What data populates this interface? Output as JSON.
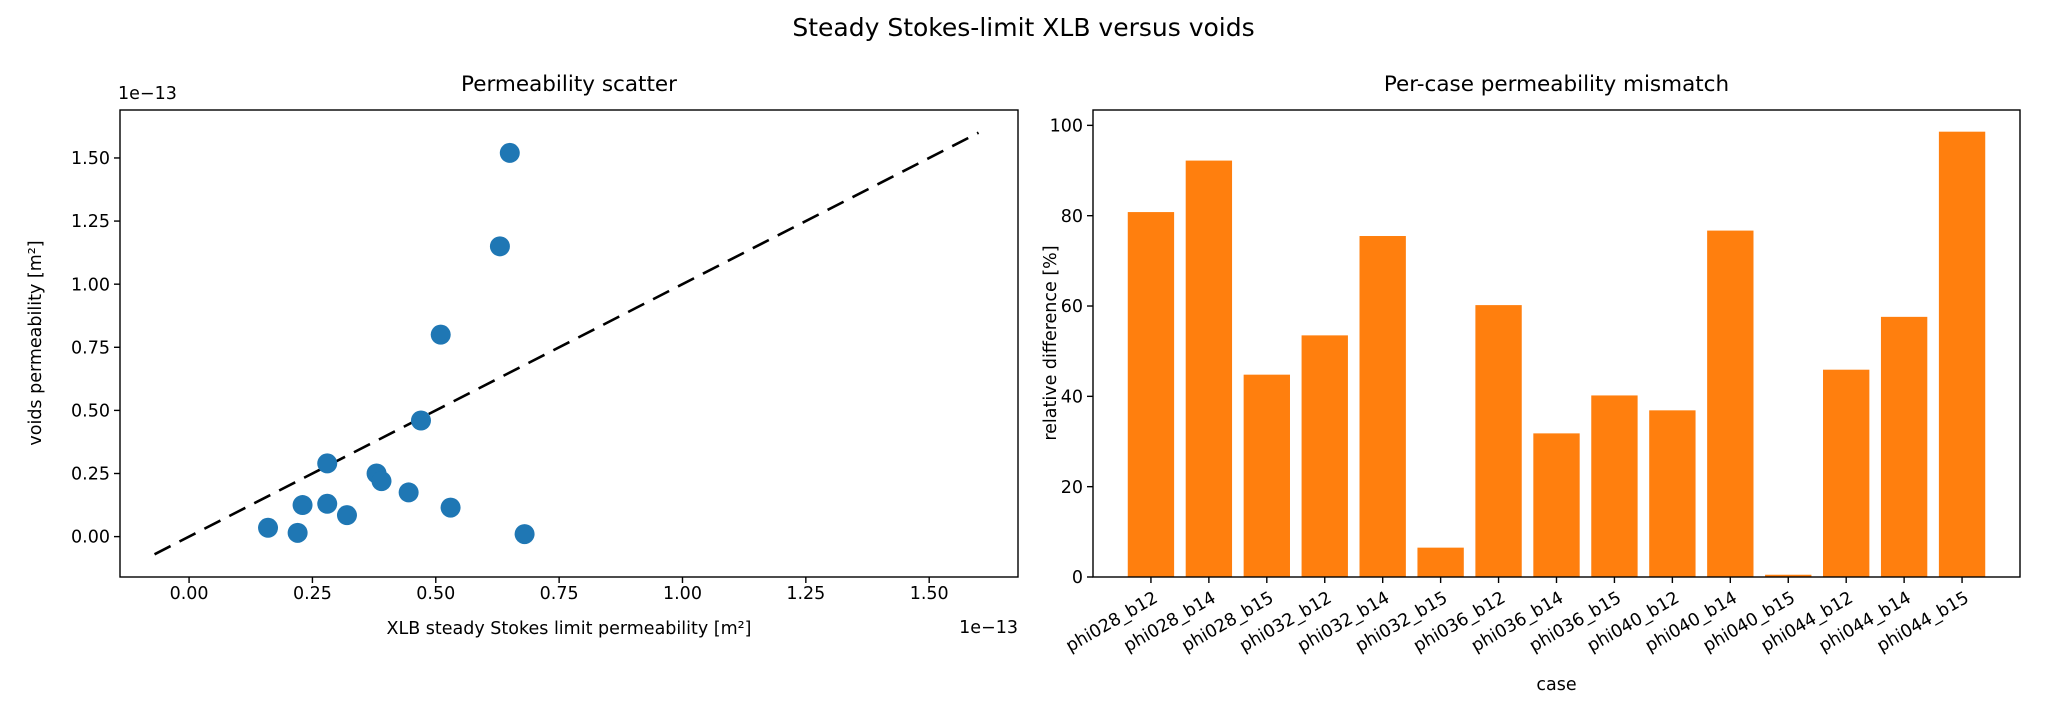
{
  "figure": {
    "suptitle": "Steady Stokes-limit XLB versus voids",
    "background": "#ffffff",
    "text_color": "#000000"
  },
  "chart_data": [
    {
      "type": "scatter",
      "title": "Permeability scatter",
      "xlabel": "XLB steady Stokes limit permeability [m²]",
      "ylabel": "voids permeability [m²]",
      "x_offset_label": "1e−13",
      "y_offset_label": "1e−13",
      "units_scale": "1e-13",
      "marker_color": "#1f77b4",
      "xlim": [
        -0.14,
        1.68
      ],
      "ylim": [
        -0.16,
        1.69
      ],
      "grid": false,
      "x_ticks": {
        "values": [
          0,
          0.25,
          0.5,
          0.75,
          1.0,
          1.25,
          1.5
        ],
        "labels": [
          "0.00",
          "0.25",
          "0.50",
          "0.75",
          "1.00",
          "1.25",
          "1.50"
        ]
      },
      "y_ticks": {
        "values": [
          0,
          0.25,
          0.5,
          0.75,
          1.0,
          1.25,
          1.5
        ],
        "labels": [
          "0.00",
          "0.25",
          "0.50",
          "0.75",
          "1.00",
          "1.25",
          "1.50"
        ]
      },
      "points": [
        [
          0.65,
          1.52
        ],
        [
          0.63,
          1.15
        ],
        [
          0.51,
          0.8
        ],
        [
          0.47,
          0.46
        ],
        [
          0.28,
          0.29
        ],
        [
          0.38,
          0.25
        ],
        [
          0.39,
          0.22
        ],
        [
          0.445,
          0.175
        ],
        [
          0.53,
          0.115
        ],
        [
          0.23,
          0.125
        ],
        [
          0.28,
          0.13
        ],
        [
          0.32,
          0.085
        ],
        [
          0.16,
          0.035
        ],
        [
          0.22,
          0.015
        ],
        [
          0.68,
          0.01
        ]
      ],
      "parity_line": {
        "style": "dashed",
        "color": "#000000",
        "from": -0.07,
        "to": 1.6
      }
    },
    {
      "type": "bar",
      "title": "Per-case permeability mismatch",
      "xlabel": "case",
      "ylabel": "relative difference [%]",
      "bar_color": "#ff7f0e",
      "ylim": [
        0,
        103.4
      ],
      "grid": false,
      "y_ticks": {
        "values": [
          0,
          20,
          40,
          60,
          80,
          100
        ],
        "labels": [
          "0",
          "20",
          "40",
          "60",
          "80",
          "100"
        ]
      },
      "categories": [
        "phi028_b12",
        "phi028_b14",
        "phi028_b15",
        "phi032_b12",
        "phi032_b14",
        "phi032_b15",
        "phi036_b12",
        "phi036_b14",
        "phi036_b15",
        "phi040_b12",
        "phi040_b14",
        "phi040_b15",
        "phi044_b12",
        "phi044_b14",
        "phi044_b15"
      ],
      "values": [
        80.8,
        92.2,
        44.8,
        53.5,
        75.5,
        6.5,
        60.2,
        31.8,
        40.2,
        36.9,
        76.7,
        0.5,
        45.9,
        57.6,
        98.6
      ]
    }
  ]
}
